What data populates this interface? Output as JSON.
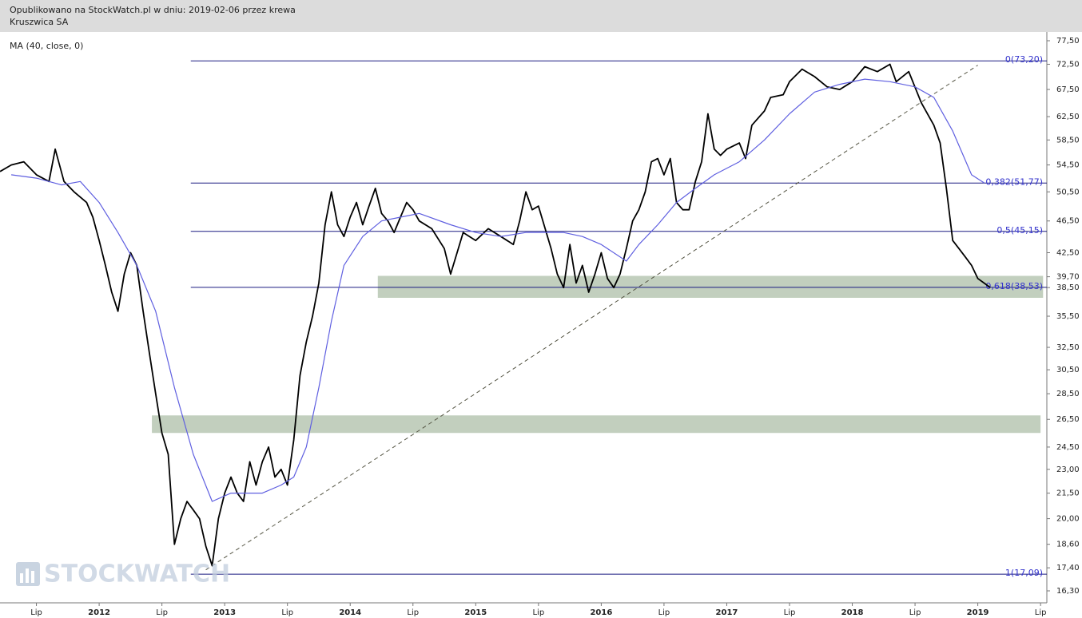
{
  "chart_data": {
    "type": "line",
    "title": "Opublikowano na StockWatch.pl w dniu: 2019-02-06 przez krewa",
    "watermark": "STOCKWATCH",
    "log_scale": true,
    "xlim": [
      2011.21,
      2019.55
    ],
    "xticks": [
      {
        "value": 2011.5,
        "label": "Lip"
      },
      2012,
      {
        "value": 2012.5,
        "label": "Lip"
      },
      2013,
      {
        "value": 2013.5,
        "label": "Lip"
      },
      2014,
      {
        "value": 2014.5,
        "label": "Lip"
      },
      2015,
      {
        "value": 2015.5,
        "label": "Lip"
      },
      2016,
      {
        "value": 2016.5,
        "label": "Lip"
      },
      2017,
      {
        "value": 2017.5,
        "label": "Lip"
      },
      2018,
      {
        "value": 2018.5,
        "label": "Lip"
      },
      2019,
      {
        "value": 2019.5,
        "label": "Lip"
      }
    ],
    "ylim": [
      16.3,
      77.5
    ],
    "yticks": [
      {
        "value": 16.3,
        "label": "16,30"
      },
      {
        "value": 17.4,
        "label": "17,40"
      },
      {
        "value": 18.6,
        "label": "18,60"
      },
      {
        "value": 20,
        "label": "20,00"
      },
      {
        "value": 21.5,
        "label": "21,50"
      },
      {
        "value": 23,
        "label": "23,00"
      },
      {
        "value": 24.5,
        "label": "24,50"
      },
      {
        "value": 26.5,
        "label": "26,50"
      },
      {
        "value": 28.5,
        "label": "28,50"
      },
      {
        "value": 30.5,
        "label": "30,50"
      },
      {
        "value": 32.5,
        "label": "32,50"
      },
      {
        "value": 35.5,
        "label": "35,50"
      },
      {
        "value": 38.5,
        "label": "38,50"
      },
      {
        "value": 39.7,
        "label": "39,70"
      },
      {
        "value": 42.5,
        "label": "42,50"
      },
      {
        "value": 46.5,
        "label": "46,50"
      },
      {
        "value": 50.5,
        "label": "50,50"
      },
      {
        "value": 54.5,
        "label": "54,50"
      },
      {
        "value": 58.5,
        "label": "58,50"
      },
      {
        "value": 62.5,
        "label": "62,50"
      },
      {
        "value": 67.5,
        "label": "67,50"
      },
      {
        "value": 72.5,
        "label": "72,50"
      },
      {
        "value": 77.5,
        "label": "77,50"
      }
    ],
    "levels": [
      {
        "value": 73.2,
        "label": "0(73,20)"
      },
      {
        "value": 51.77,
        "label": "0,382(51,77)"
      },
      {
        "value": 45.15,
        "label": "0,5(45,15)"
      },
      {
        "value": 38.53,
        "label": "0,618(38,53)"
      },
      {
        "value": 17.09,
        "label": "1(17,09)"
      }
    ],
    "levels_from": 2012.73,
    "zones": [
      {
        "low": 37.4,
        "high": 39.8,
        "from": 2014.22,
        "to": 2019.52,
        "color": "#c2cfbe"
      },
      {
        "low": 25.5,
        "high": 26.8,
        "from": 2012.42,
        "to": 2019.5,
        "color": "#c2cfbe"
      }
    ],
    "trendline": {
      "x": [
        2012.85,
        2019.0
      ],
      "y": [
        17.3,
        72.3
      ],
      "color": "#555544"
    },
    "series": [
      {
        "name": "Kruszwica SA",
        "color": "#000000",
        "x": [
          2011.21,
          2011.3,
          2011.4,
          2011.5,
          2011.6,
          2011.65,
          2011.72,
          2011.8,
          2011.9,
          2011.95,
          2012.0,
          2012.05,
          2012.1,
          2012.15,
          2012.2,
          2012.25,
          2012.3,
          2012.35,
          2012.4,
          2012.45,
          2012.5,
          2012.55,
          2012.6,
          2012.65,
          2012.7,
          2012.75,
          2012.8,
          2012.85,
          2012.9,
          2012.95,
          2013.0,
          2013.05,
          2013.1,
          2013.15,
          2013.2,
          2013.25,
          2013.3,
          2013.35,
          2013.4,
          2013.45,
          2013.5,
          2013.55,
          2013.6,
          2013.65,
          2013.7,
          2013.75,
          2013.8,
          2013.85,
          2013.9,
          2013.95,
          2014.0,
          2014.05,
          2014.1,
          2014.15,
          2014.2,
          2014.25,
          2014.3,
          2014.35,
          2014.4,
          2014.45,
          2014.5,
          2014.55,
          2014.65,
          2014.75,
          2014.8,
          2014.9,
          2015.0,
          2015.1,
          2015.2,
          2015.3,
          2015.35,
          2015.4,
          2015.45,
          2015.5,
          2015.6,
          2015.65,
          2015.7,
          2015.75,
          2015.8,
          2015.85,
          2015.9,
          2015.95,
          2016.0,
          2016.05,
          2016.1,
          2016.15,
          2016.2,
          2016.25,
          2016.3,
          2016.35,
          2016.4,
          2016.45,
          2016.5,
          2016.55,
          2016.6,
          2016.65,
          2016.7,
          2016.75,
          2016.8,
          2016.85,
          2016.9,
          2016.95,
          2017.0,
          2017.1,
          2017.15,
          2017.2,
          2017.3,
          2017.35,
          2017.45,
          2017.5,
          2017.6,
          2017.7,
          2017.8,
          2017.9,
          2018.0,
          2018.1,
          2018.2,
          2018.3,
          2018.35,
          2018.45,
          2018.55,
          2018.65,
          2018.7,
          2018.75,
          2018.8,
          2018.85,
          2018.9,
          2018.95,
          2019.0,
          2019.05,
          2019.1
        ],
        "values": [
          53.5,
          54.5,
          55,
          53,
          52,
          57,
          52,
          50.5,
          49,
          47,
          44,
          41,
          38,
          36,
          40,
          42.5,
          41,
          36,
          32,
          28.5,
          25.5,
          24,
          18.6,
          20,
          21,
          20.5,
          20,
          18.5,
          17.5,
          20,
          21.5,
          22.5,
          21.5,
          21,
          23.5,
          22,
          23.5,
          24.5,
          22.5,
          23,
          22,
          25,
          30,
          33,
          35.5,
          39,
          46,
          50.5,
          46,
          44.5,
          47,
          49,
          46,
          48.5,
          51,
          47.5,
          46.5,
          45,
          47,
          49,
          48,
          46.5,
          45.5,
          43,
          40,
          45,
          44,
          45.5,
          44.5,
          43.5,
          46.5,
          50.5,
          48,
          48.5,
          43,
          40,
          38.5,
          43.5,
          39,
          41,
          38,
          40,
          42.5,
          39.5,
          38.5,
          40,
          43,
          46.5,
          48,
          50.5,
          55,
          55.5,
          53,
          55.5,
          49,
          48,
          48,
          52,
          55,
          63,
          57,
          56,
          57,
          58,
          55.5,
          61,
          63.5,
          66,
          66.5,
          69,
          71.5,
          70,
          68,
          67.5,
          69,
          72,
          71,
          72.5,
          69,
          71,
          65,
          61,
          58,
          51,
          44,
          43,
          42,
          41,
          39.5,
          39,
          38.5
        ]
      },
      {
        "name": "MA (40, close, 0)",
        "color": "#5f5fe0",
        "x": [
          2011.3,
          2011.5,
          2011.7,
          2011.85,
          2012.0,
          2012.15,
          2012.3,
          2012.45,
          2012.6,
          2012.75,
          2012.9,
          2013.05,
          2013.15,
          2013.3,
          2013.45,
          2013.55,
          2013.65,
          2013.75,
          2013.85,
          2013.95,
          2014.1,
          2014.25,
          2014.4,
          2014.55,
          2014.8,
          2015.0,
          2015.2,
          2015.4,
          2015.55,
          2015.7,
          2015.85,
          2016.0,
          2016.2,
          2016.3,
          2016.45,
          2016.6,
          2016.75,
          2016.9,
          2017.1,
          2017.3,
          2017.5,
          2017.7,
          2017.9,
          2018.1,
          2018.3,
          2018.5,
          2018.65,
          2018.8,
          2018.95,
          2019.05
        ],
        "values": [
          53,
          52.5,
          51.5,
          52,
          49,
          45,
          41,
          36,
          29,
          24,
          21,
          21.5,
          21.5,
          21.5,
          22,
          22.5,
          24.5,
          29,
          35,
          41,
          44.5,
          46.5,
          47,
          47.5,
          46,
          45,
          44.5,
          45,
          45,
          45,
          44.5,
          43.5,
          41.5,
          43.5,
          46,
          49,
          51,
          53,
          55,
          58.5,
          63,
          67,
          68.5,
          69.5,
          69,
          68,
          66,
          60,
          53,
          51.8
        ]
      }
    ]
  }
}
